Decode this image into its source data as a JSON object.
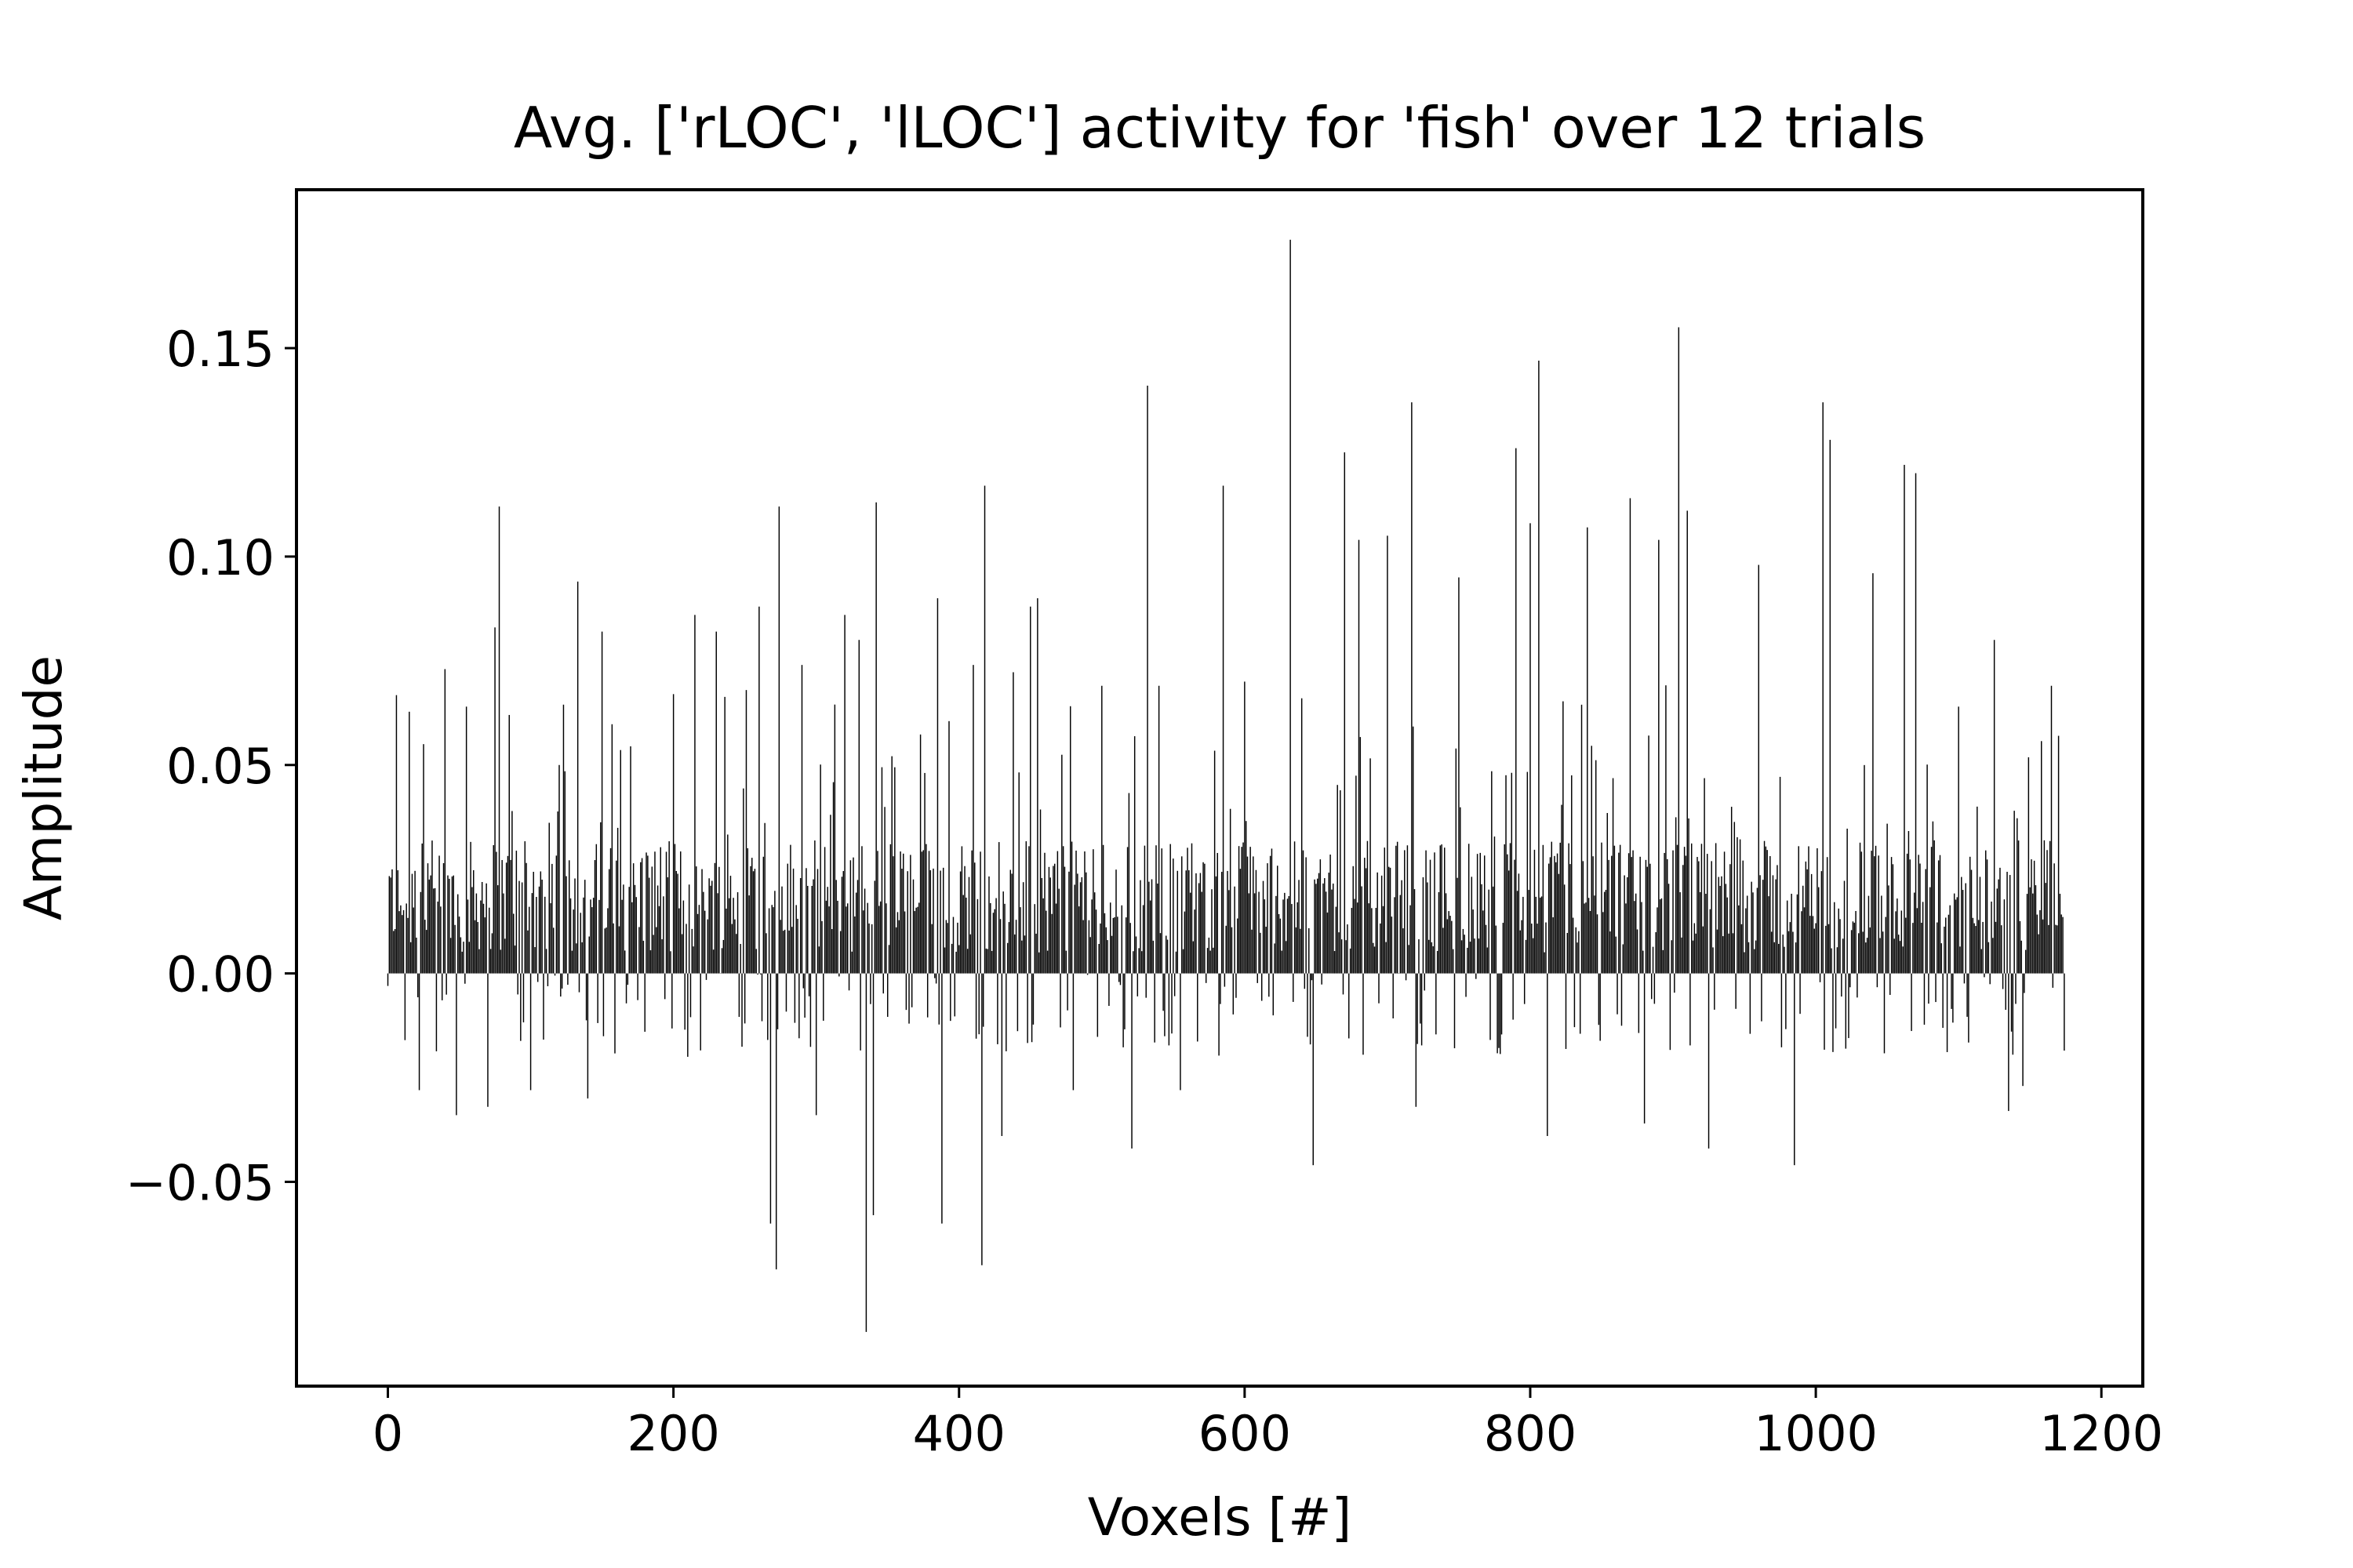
{
  "chart_data": {
    "type": "bar",
    "title": "Avg. ['rLOC', 'lLOC'] activity for 'fish' over 12 trials",
    "xlabel": "Voxels [#]",
    "ylabel": "Amplitude",
    "xlim": [
      -64,
      1229
    ],
    "ylim": [
      -0.099,
      0.188
    ],
    "x_ticks": [
      0,
      200,
      400,
      600,
      800,
      1000,
      1200
    ],
    "x_tick_labels": [
      "0",
      "200",
      "400",
      "600",
      "800",
      "1000",
      "1200"
    ],
    "y_ticks": [
      -0.05,
      0,
      0.05,
      0.1,
      0.15
    ],
    "y_tick_labels": [
      "−0.05",
      "0.00",
      "0.05",
      "0.10",
      "0.15"
    ],
    "bar_color": "#000000",
    "grid": false,
    "n_voxels": 1175,
    "highlights": [
      {
        "x": 0,
        "value": -0.003
      },
      {
        "x": 2,
        "value": 0.023
      },
      {
        "x": 10,
        "value": 0.014
      },
      {
        "x": 12,
        "value": -0.016
      },
      {
        "x": 22,
        "value": -0.028
      },
      {
        "x": 25,
        "value": 0.055
      },
      {
        "x": 40,
        "value": 0.073
      },
      {
        "x": 48,
        "value": -0.034
      },
      {
        "x": 55,
        "value": 0.064
      },
      {
        "x": 70,
        "value": -0.032
      },
      {
        "x": 75,
        "value": 0.083
      },
      {
        "x": 78,
        "value": 0.112
      },
      {
        "x": 85,
        "value": 0.062
      },
      {
        "x": 100,
        "value": -0.028
      },
      {
        "x": 120,
        "value": 0.05
      },
      {
        "x": 133,
        "value": 0.094
      },
      {
        "x": 140,
        "value": -0.03
      },
      {
        "x": 150,
        "value": 0.082
      },
      {
        "x": 180,
        "value": -0.014
      },
      {
        "x": 200,
        "value": 0.067
      },
      {
        "x": 210,
        "value": -0.02
      },
      {
        "x": 215,
        "value": 0.086
      },
      {
        "x": 230,
        "value": 0.082
      },
      {
        "x": 250,
        "value": -0.012
      },
      {
        "x": 260,
        "value": 0.088
      },
      {
        "x": 268,
        "value": -0.06
      },
      {
        "x": 272,
        "value": -0.071
      },
      {
        "x": 274,
        "value": 0.112
      },
      {
        "x": 290,
        "value": 0.074
      },
      {
        "x": 300,
        "value": -0.034
      },
      {
        "x": 320,
        "value": 0.086
      },
      {
        "x": 330,
        "value": 0.08
      },
      {
        "x": 335,
        "value": -0.086
      },
      {
        "x": 340,
        "value": -0.058
      },
      {
        "x": 342,
        "value": 0.113
      },
      {
        "x": 385,
        "value": 0.09
      },
      {
        "x": 388,
        "value": -0.06
      },
      {
        "x": 410,
        "value": 0.074
      },
      {
        "x": 416,
        "value": -0.07
      },
      {
        "x": 418,
        "value": 0.117
      },
      {
        "x": 430,
        "value": -0.039
      },
      {
        "x": 450,
        "value": 0.088
      },
      {
        "x": 455,
        "value": 0.09
      },
      {
        "x": 480,
        "value": -0.028
      },
      {
        "x": 500,
        "value": 0.069
      },
      {
        "x": 521,
        "value": -0.042
      },
      {
        "x": 532,
        "value": 0.141
      },
      {
        "x": 540,
        "value": 0.069
      },
      {
        "x": 555,
        "value": -0.028
      },
      {
        "x": 585,
        "value": 0.117
      },
      {
        "x": 600,
        "value": 0.07
      },
      {
        "x": 632,
        "value": 0.176
      },
      {
        "x": 640,
        "value": 0.066
      },
      {
        "x": 648,
        "value": -0.046
      },
      {
        "x": 670,
        "value": 0.125
      },
      {
        "x": 680,
        "value": 0.104
      },
      {
        "x": 700,
        "value": 0.105
      },
      {
        "x": 717,
        "value": 0.137
      },
      {
        "x": 720,
        "value": -0.032
      },
      {
        "x": 750,
        "value": 0.095
      },
      {
        "x": 790,
        "value": 0.126
      },
      {
        "x": 800,
        "value": 0.108
      },
      {
        "x": 806,
        "value": 0.147
      },
      {
        "x": 812,
        "value": -0.039
      },
      {
        "x": 840,
        "value": 0.107
      },
      {
        "x": 870,
        "value": 0.114
      },
      {
        "x": 880,
        "value": -0.036
      },
      {
        "x": 890,
        "value": 0.104
      },
      {
        "x": 904,
        "value": 0.155
      },
      {
        "x": 910,
        "value": 0.111
      },
      {
        "x": 925,
        "value": -0.042
      },
      {
        "x": 960,
        "value": 0.098
      },
      {
        "x": 985,
        "value": -0.046
      },
      {
        "x": 1005,
        "value": 0.137
      },
      {
        "x": 1010,
        "value": 0.128
      },
      {
        "x": 1040,
        "value": 0.096
      },
      {
        "x": 1062,
        "value": 0.122
      },
      {
        "x": 1070,
        "value": 0.12
      },
      {
        "x": 1100,
        "value": 0.064
      },
      {
        "x": 1125,
        "value": 0.08
      },
      {
        "x": 1135,
        "value": -0.033
      },
      {
        "x": 1145,
        "value": -0.027
      },
      {
        "x": 1165,
        "value": 0.069
      },
      {
        "x": 1170,
        "value": 0.057
      }
    ],
    "series_stats": {
      "mean": 0.02,
      "std": 0.03
    }
  }
}
